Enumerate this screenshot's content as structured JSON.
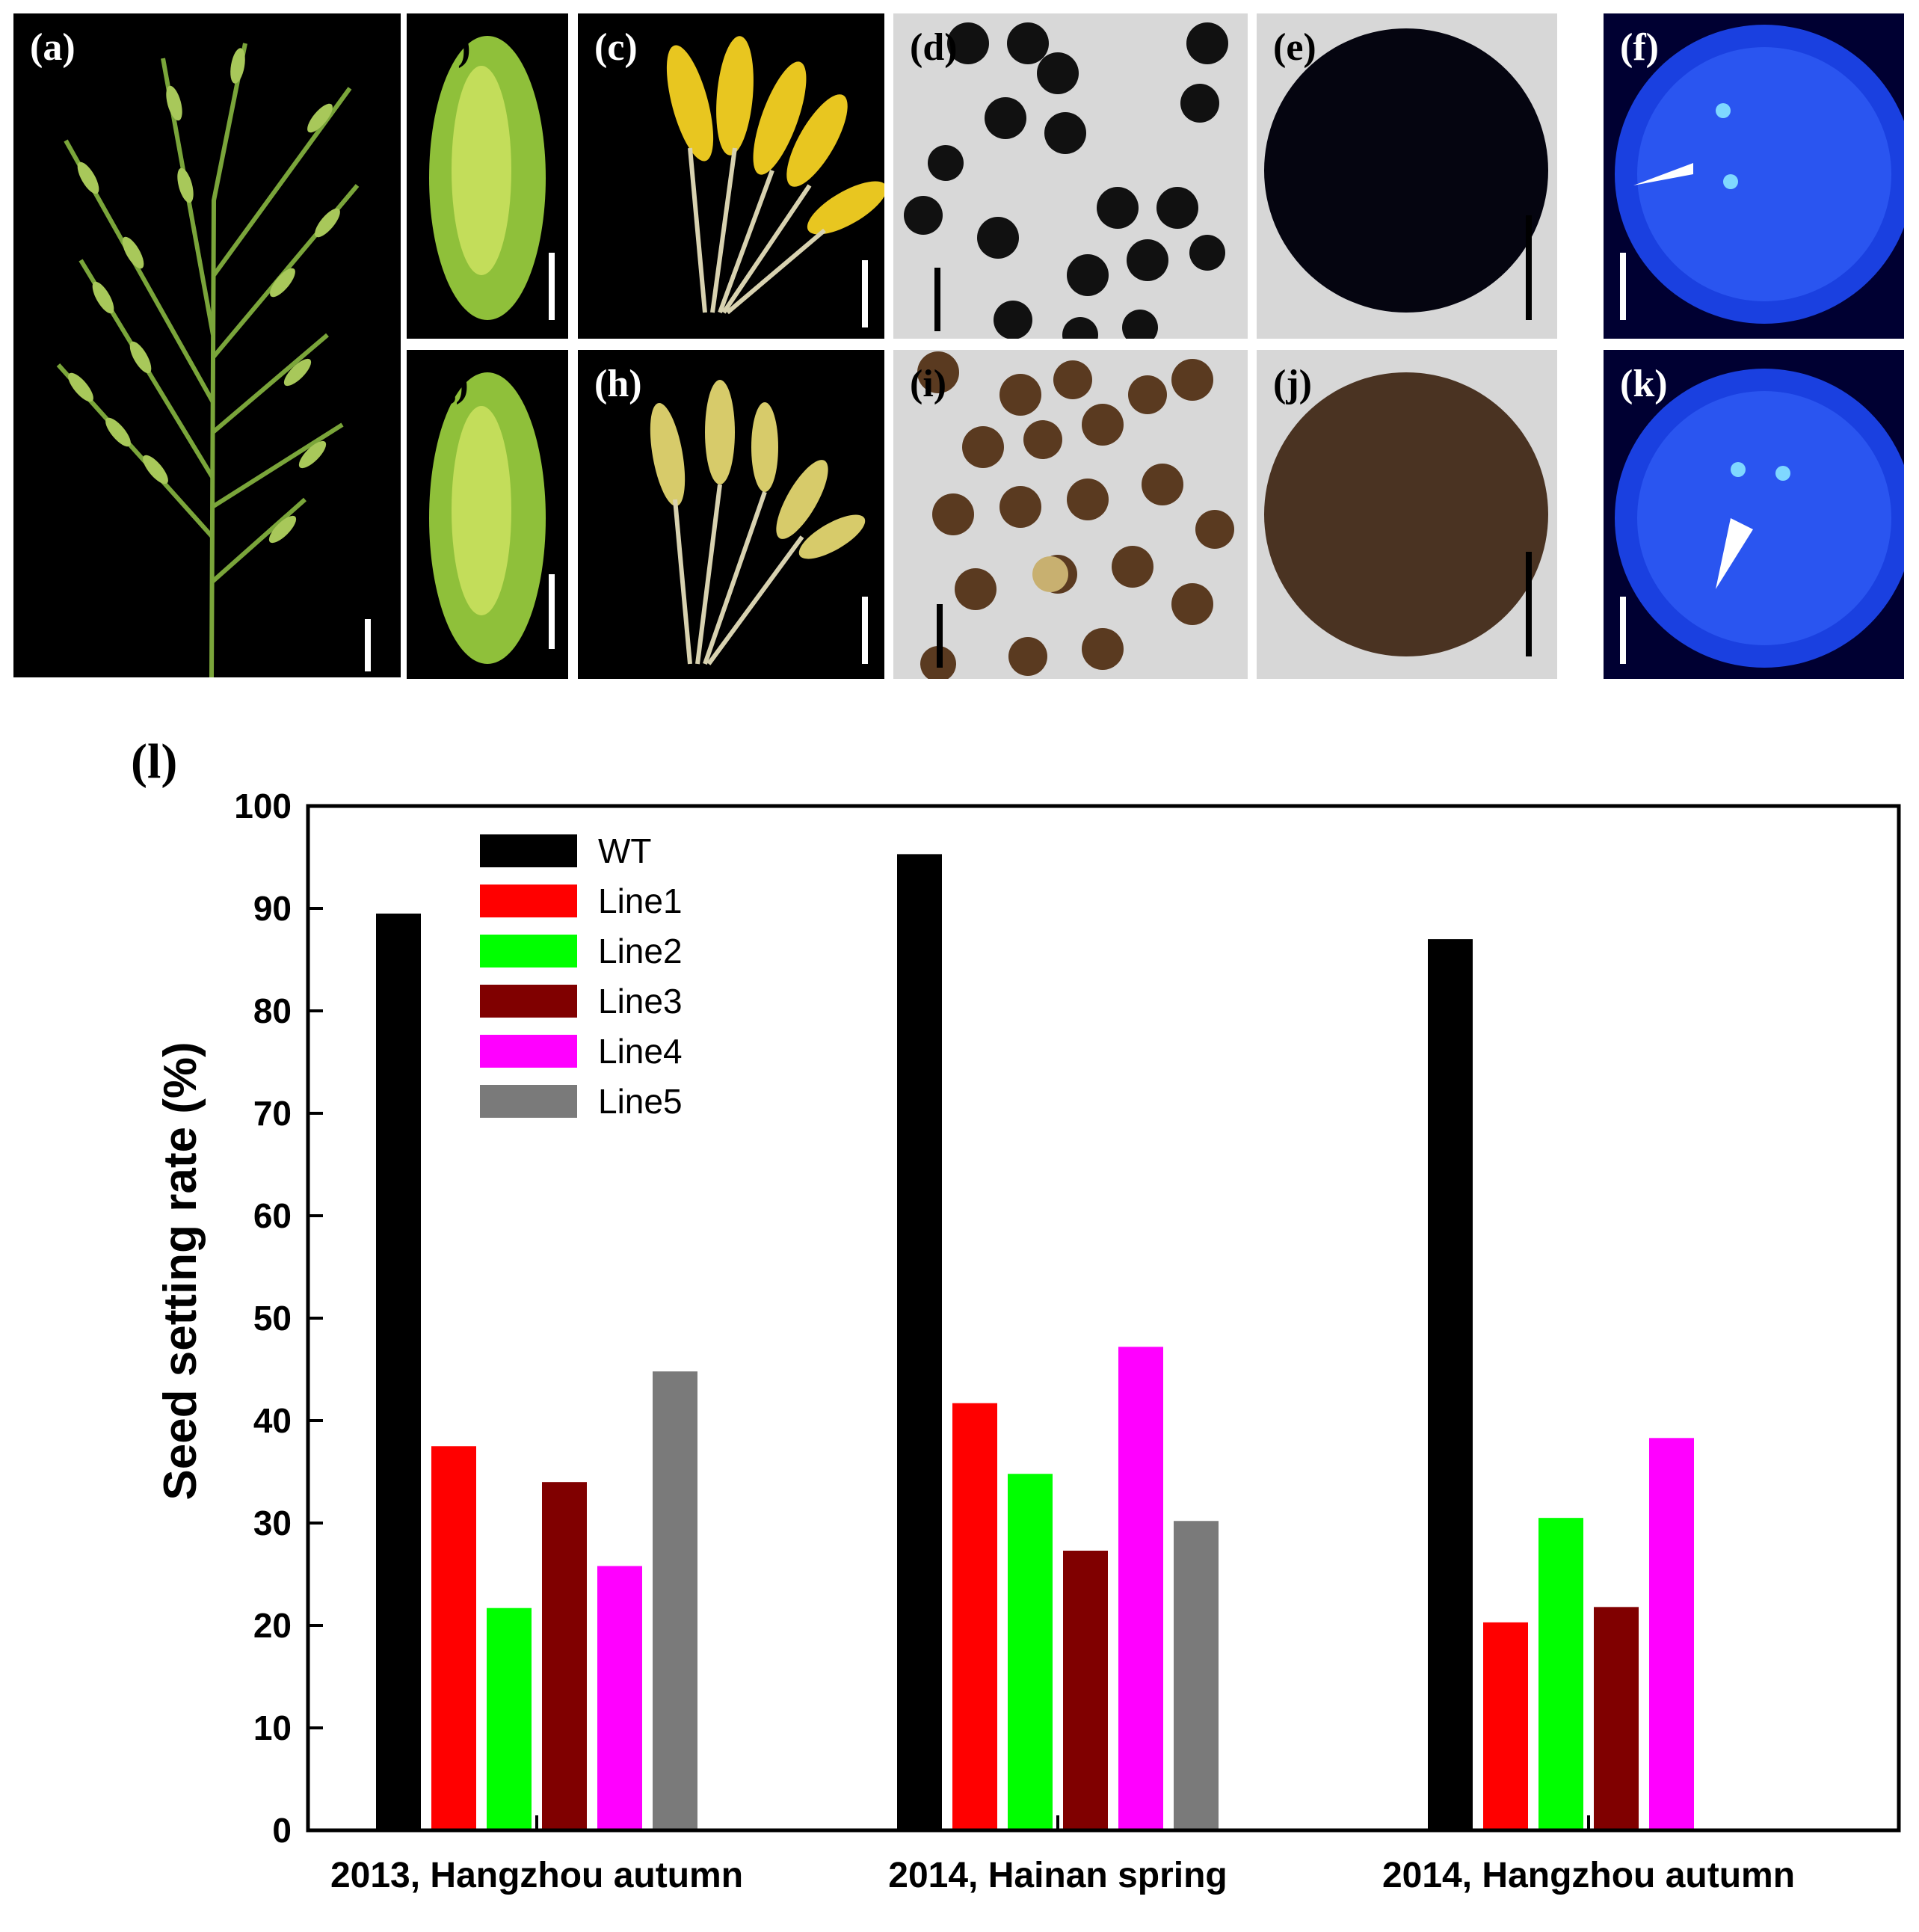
{
  "panels": [
    {
      "label": "(a)"
    },
    {
      "label": "(b)"
    },
    {
      "label": "(c)"
    },
    {
      "label": "(d)"
    },
    {
      "label": "(e)"
    },
    {
      "label": "(f)"
    },
    {
      "label": "(g)"
    },
    {
      "label": "(h)"
    },
    {
      "label": "(i)"
    },
    {
      "label": "(j)"
    },
    {
      "label": "(k)"
    }
  ],
  "chart_panel_label": "(l)",
  "chart_data": {
    "type": "bar",
    "ylabel": "Seed setting rate (%)",
    "xlabel": "",
    "ylim": [
      0,
      100
    ],
    "yticks": [
      "0",
      "10",
      "20",
      "30",
      "40",
      "50",
      "60",
      "70",
      "80",
      "90",
      "100"
    ],
    "categories": [
      "2013, Hangzhou autumn",
      "2014, Hainan spring",
      "2014, Hangzhou autumn"
    ],
    "legend_position": "top-left",
    "series": [
      {
        "name": "WT",
        "color": "#000000",
        "values": [
          89.5,
          95.3,
          87.0
        ]
      },
      {
        "name": "Line1",
        "color": "#ff0000",
        "values": [
          37.5,
          41.7,
          20.3
        ]
      },
      {
        "name": "Line2",
        "color": "#00ff00",
        "values": [
          21.7,
          34.8,
          30.5
        ]
      },
      {
        "name": "Line3",
        "color": "#800000",
        "values": [
          34.0,
          27.3,
          21.8
        ]
      },
      {
        "name": "Line4",
        "color": "#ff00ff",
        "values": [
          25.8,
          47.2,
          38.3
        ]
      },
      {
        "name": "Line5",
        "color": "#7a7a7a",
        "values": [
          44.8,
          30.2,
          null
        ]
      }
    ]
  }
}
